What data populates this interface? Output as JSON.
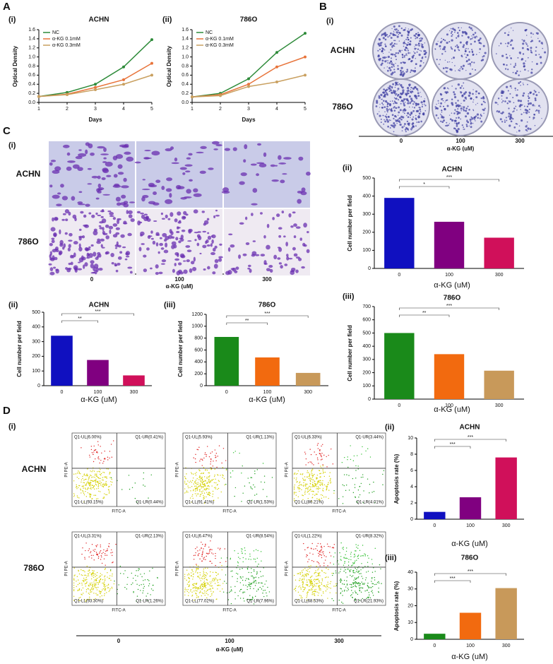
{
  "figure": {
    "panels": [
      "A",
      "B",
      "C",
      "D"
    ],
    "colony": {
      "sublabel": "(i)",
      "rows": [
        "ACHN",
        "786O"
      ],
      "columns": [
        "0",
        "100",
        "300"
      ],
      "xlabel": "α-KG (uM)"
    },
    "migration": {
      "sublabel": "(i)",
      "rows": [
        "ACHN",
        "786O"
      ],
      "columns": [
        "0",
        "100",
        "300"
      ],
      "xlabel": "α-KG (uM)"
    },
    "flow": {
      "sublabel": "(i)",
      "rows": [
        "ACHN",
        "786O"
      ],
      "columns": [
        "0",
        "100",
        "300"
      ],
      "xlabel": "α-KG (uM)",
      "plot_xlabel": "FITC-A",
      "plot_ylabel": "PI PE-A",
      "quadrants": [
        [
          [
            "Q1-UL(6.00%)",
            "Q1-UR(0.41%)",
            "Q1-LL(93.15%)",
            "Q1-LR(0.44%)"
          ],
          [
            "Q1-UL(5.93%)",
            "Q1-UR(1.13%)",
            "Q1-LL(91.41%)",
            "Q1-LR(1.53%)"
          ],
          [
            "Q1-UL(6.33%)",
            "Q1-UR(3.44%)",
            "Q1-LL(86.21%)",
            "Q1-LR(4.01%)"
          ]
        ],
        [
          [
            "Q1-UL(3.31%)",
            "Q1-UR(2.13%)",
            "Q1-LL(93.30%)",
            "Q1-LR(1.26%)"
          ],
          [
            "Q1-UL(6.47%)",
            "Q1-UR(8.54%)",
            "Q1-LL(77.02%)",
            "Q1-LR(7.96%)"
          ],
          [
            "Q1-UL(1.22%)",
            "Q1-UR(8.32%)",
            "Q1-LL(68.53%)",
            "Q1-LR(21.93%)"
          ]
        ]
      ]
    }
  },
  "chart_data": [
    {
      "type": "line",
      "panel": "(i)",
      "title": "ACHN",
      "xlabel": "Days",
      "ylabel": "Optical Density",
      "x": [
        1,
        2,
        3,
        4,
        5
      ],
      "xlim": [
        1,
        5
      ],
      "xticks": [
        1,
        2,
        3,
        4,
        5
      ],
      "ylim": [
        0,
        1.6
      ],
      "yticks": [
        {
          "value": 0,
          "label": "0.0"
        },
        0.2,
        0.4,
        0.6,
        0.8,
        {
          "value": 1,
          "label": "1.0"
        },
        1.2,
        1.4,
        1.6
      ],
      "series": [
        {
          "name": "NC",
          "color": "#2e8b3a",
          "values": [
            0.13,
            0.22,
            0.4,
            0.78,
            1.38
          ]
        },
        {
          "name": "α-KG 0.1mM",
          "color": "#e8743b",
          "values": [
            0.13,
            0.18,
            0.33,
            0.5,
            0.86
          ]
        },
        {
          "name": "α-KG 0.3mM",
          "color": "#c9a060",
          "values": [
            0.13,
            0.17,
            0.28,
            0.4,
            0.6
          ]
        }
      ]
    },
    {
      "type": "line",
      "panel": "(ii)",
      "title": "786O",
      "xlabel": "Days",
      "ylabel": "Optical Density",
      "x": [
        1,
        2,
        3,
        4,
        5
      ],
      "xlim": [
        1,
        5
      ],
      "xticks": [
        1,
        2,
        3,
        4,
        5
      ],
      "ylim": [
        0,
        1.6
      ],
      "yticks": [
        {
          "value": 0,
          "label": "0.0"
        },
        0.2,
        0.4,
        0.6,
        0.8,
        {
          "value": 1,
          "label": "1.0"
        },
        1.2,
        1.4,
        1.6
      ],
      "series": [
        {
          "name": "NC",
          "color": "#2e8b3a",
          "values": [
            0.12,
            0.2,
            0.52,
            1.1,
            1.52
          ]
        },
        {
          "name": "α-KG 0.1mM",
          "color": "#e8743b",
          "values": [
            0.12,
            0.17,
            0.4,
            0.78,
            1.0
          ]
        },
        {
          "name": "α-KG 0.3mM",
          "color": "#c9a060",
          "values": [
            0.12,
            0.15,
            0.35,
            0.45,
            0.6
          ]
        }
      ]
    },
    {
      "type": "bar",
      "panel": "(ii)",
      "title": "ACHN",
      "xlabel": "α-KG (uM)",
      "ylabel": "Cell number per field",
      "categories": [
        "0",
        "100",
        "300"
      ],
      "values": [
        340,
        175,
        70
      ],
      "colors": [
        "#1010c0",
        "#800080",
        "#d0105a"
      ],
      "ylim": [
        0,
        500
      ],
      "yticks": [
        0,
        100,
        200,
        300,
        400,
        500
      ],
      "significance": [
        "**",
        "***"
      ]
    },
    {
      "type": "bar",
      "panel": "(iii)",
      "title": "786O",
      "xlabel": "α-KG (uM)",
      "ylabel": "Cell number per field",
      "categories": [
        "0",
        "100",
        "300"
      ],
      "values": [
        820,
        475,
        215
      ],
      "colors": [
        "#1a8a1a",
        "#f26a0f",
        "#c8995a"
      ],
      "ylim": [
        0,
        1200
      ],
      "yticks": [
        0,
        200,
        400,
        600,
        800,
        1000,
        1200
      ],
      "significance": [
        "**",
        "***"
      ]
    },
    {
      "type": "bar",
      "panel": "(ii)",
      "title": "ACHN",
      "xlabel": "α-KG (uM)",
      "ylabel": "Cell number per field",
      "categories": [
        "0",
        "100",
        "300"
      ],
      "values": [
        390,
        258,
        170
      ],
      "colors": [
        "#1010c0",
        "#800080",
        "#d0105a"
      ],
      "ylim": [
        0,
        500
      ],
      "yticks": [
        0,
        100,
        200,
        300,
        400,
        500
      ],
      "significance": [
        "*",
        "***"
      ]
    },
    {
      "type": "bar",
      "panel": "(iii)",
      "title": "786O",
      "xlabel": "α-KG (uM)",
      "ylabel": "Cell number per field",
      "categories": [
        "0",
        "100",
        "300"
      ],
      "values": [
        500,
        340,
        215
      ],
      "colors": [
        "#1a8a1a",
        "#f26a0f",
        "#c8995a"
      ],
      "ylim": [
        0,
        700
      ],
      "yticks": [
        0,
        100,
        200,
        300,
        400,
        500,
        600,
        700
      ],
      "significance": [
        "**",
        "***"
      ]
    },
    {
      "type": "bar",
      "panel": "(ii)",
      "title": "ACHN",
      "xlabel": "α-KG (uM)",
      "ylabel": "Apoptosis rate (%)",
      "categories": [
        "0",
        "100",
        "300"
      ],
      "values": [
        0.9,
        2.7,
        7.6
      ],
      "colors": [
        "#1010c0",
        "#800080",
        "#d0105a"
      ],
      "ylim": [
        0,
        10
      ],
      "yticks": [
        0,
        2,
        4,
        6,
        8,
        10
      ],
      "significance": [
        "***",
        "***"
      ]
    },
    {
      "type": "bar",
      "panel": "(iii)",
      "title": "786O",
      "xlabel": "α-KG (uM)",
      "ylabel": "Apoptosis rate (%)",
      "categories": [
        "0",
        "100",
        "300"
      ],
      "values": [
        3.3,
        15.8,
        30.5
      ],
      "colors": [
        "#1a8a1a",
        "#f26a0f",
        "#c8995a"
      ],
      "ylim": [
        0,
        40
      ],
      "yticks": [
        0,
        10,
        20,
        30,
        40
      ],
      "significance": [
        "***",
        "***"
      ]
    }
  ]
}
